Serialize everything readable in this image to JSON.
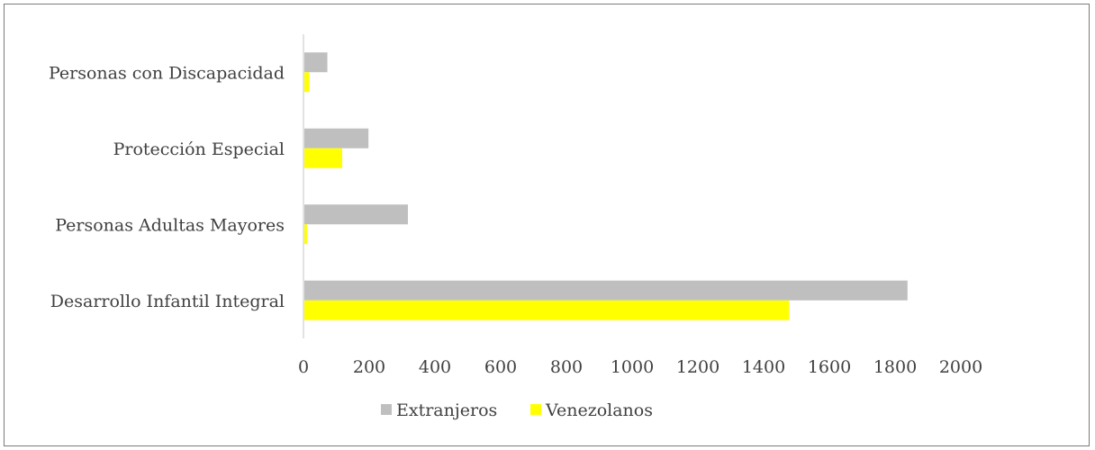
{
  "chart_data": {
    "type": "bar",
    "orientation": "horizontal",
    "categories": [
      "Personas con Discapacidad",
      "Protección Especial",
      "Personas Adultas Mayores",
      "Desarrollo Infantil Integral"
    ],
    "series": [
      {
        "name": "Extranjeros",
        "color": "#bfbfbf",
        "values": [
          70,
          195,
          315,
          1835
        ]
      },
      {
        "name": "Venezolanos",
        "color": "#ffff00",
        "values": [
          15,
          115,
          8,
          1475
        ]
      }
    ],
    "xlim": [
      0,
      2000
    ],
    "xticks": [
      0,
      200,
      400,
      600,
      800,
      1000,
      1200,
      1400,
      1600,
      1800,
      2000
    ],
    "grid": false,
    "legend_position": "bottom"
  }
}
